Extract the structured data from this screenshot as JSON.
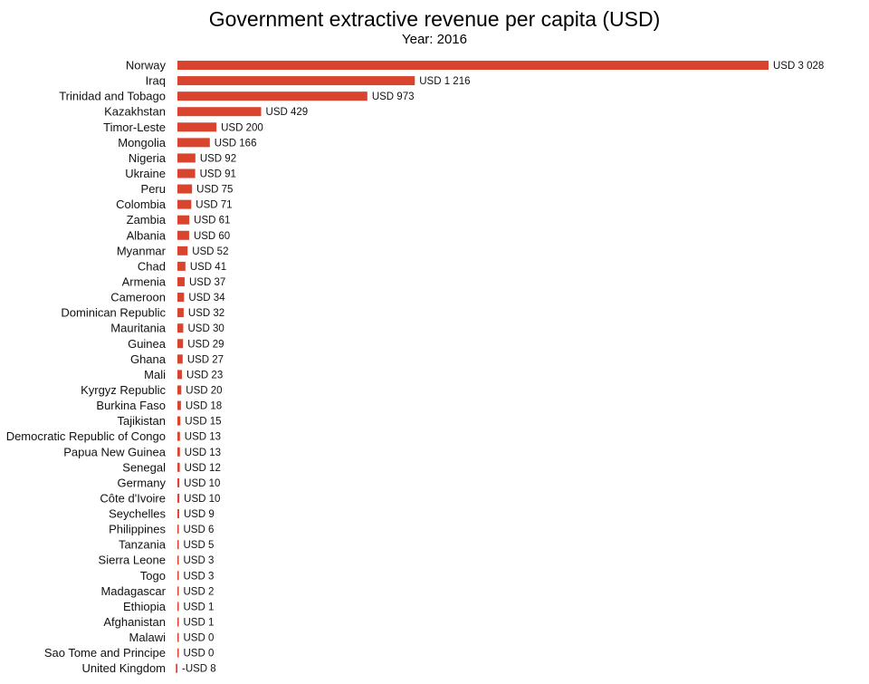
{
  "chart_data": {
    "type": "bar",
    "orientation": "horizontal",
    "title": "Government extractive revenue per capita (USD)",
    "subtitle": "Year: 2016",
    "xlabel": "",
    "ylabel": "",
    "grid": false,
    "bar_color": "#d9442f",
    "value_prefix": "USD ",
    "categories": [
      "Norway",
      "Iraq",
      "Trinidad and Tobago",
      "Kazakhstan",
      "Timor-Leste",
      "Mongolia",
      "Nigeria",
      "Ukraine",
      "Peru",
      "Colombia",
      "Zambia",
      "Albania",
      "Myanmar",
      "Chad",
      "Armenia",
      "Cameroon",
      "Dominican Republic",
      "Mauritania",
      "Guinea",
      "Ghana",
      "Mali",
      "Kyrgyz Republic",
      "Burkina Faso",
      "Tajikistan",
      "Democratic Republic of Congo",
      "Papua New Guinea",
      "Senegal",
      "Germany",
      "Côte d'Ivoire",
      "Seychelles",
      "Philippines",
      "Tanzania",
      "Sierra Leone",
      "Togo",
      "Madagascar",
      "Ethiopia",
      "Afghanistan",
      "Malawi",
      "Sao Tome and Principe",
      "United Kingdom"
    ],
    "values": [
      3028,
      1216,
      973,
      429,
      200,
      166,
      92,
      91,
      75,
      71,
      61,
      60,
      52,
      41,
      37,
      34,
      32,
      30,
      29,
      27,
      23,
      20,
      18,
      15,
      13,
      13,
      12,
      10,
      10,
      9,
      6,
      5,
      3,
      3,
      2,
      1,
      1,
      0,
      0,
      -8
    ],
    "data_labels": [
      "USD 3 028",
      "USD 1 216",
      "USD 973",
      "USD 429",
      "USD 200",
      "USD 166",
      "USD 92",
      "USD 91",
      "USD 75",
      "USD 71",
      "USD 61",
      "USD 60",
      "USD 52",
      "USD 41",
      "USD 37",
      "USD 34",
      "USD 32",
      "USD 30",
      "USD 29",
      "USD 27",
      "USD 23",
      "USD 20",
      "USD 18",
      "USD 15",
      "USD 13",
      "USD 13",
      "USD 12",
      "USD 10",
      "USD 10",
      "USD 9",
      "USD 6",
      "USD 5",
      "USD 3",
      "USD 3",
      "USD 2",
      "USD 1",
      "USD 1",
      "USD 0",
      "USD 0",
      "-USD 8"
    ]
  }
}
